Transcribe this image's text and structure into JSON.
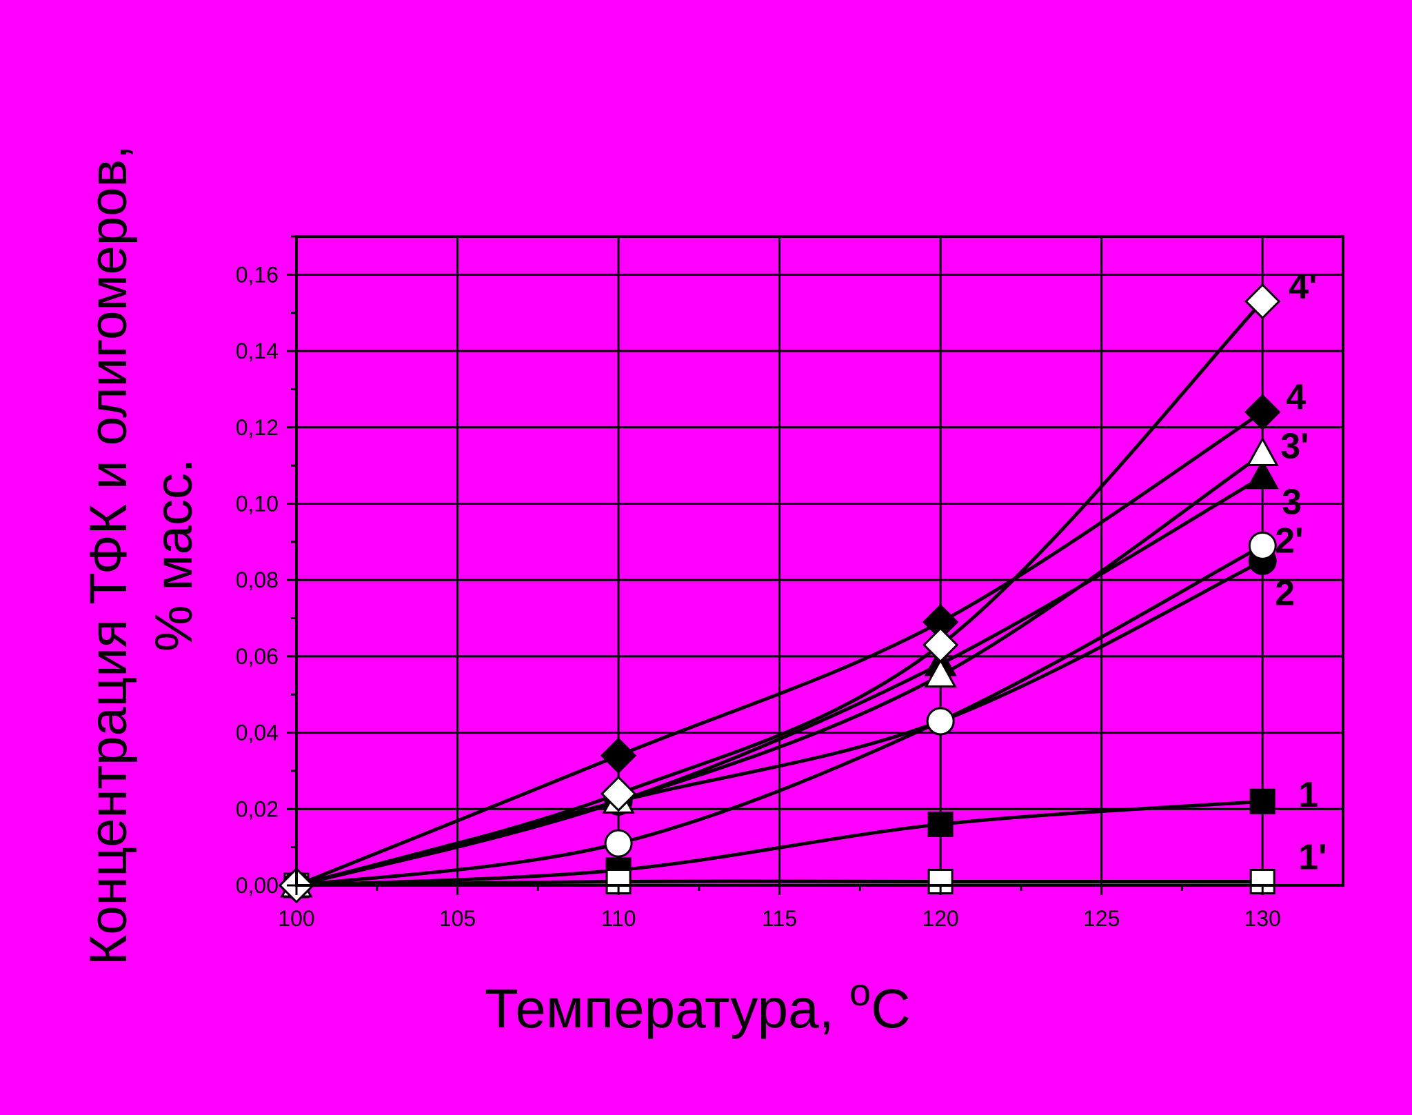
{
  "colors": {
    "background": "#ff00ff",
    "frame": "#000000",
    "ink": "#000000",
    "marker_open_fill": "#ffffff"
  },
  "chart_data": {
    "type": "line",
    "title": "",
    "xlabel": "Температура, ",
    "xlabel_superscript": "o",
    "xlabel_unit": "C",
    "ylabel_line1": "Концентрация ТФК и олигомеров,",
    "ylabel_line2": "% масс.",
    "xlim": [
      100,
      132.5
    ],
    "ylim": [
      0,
      0.17
    ],
    "grid": true,
    "legend": "none",
    "x_ticks": [
      {
        "value": 100,
        "label": "100"
      },
      {
        "value": 105,
        "label": "105"
      },
      {
        "value": 110,
        "label": "110"
      },
      {
        "value": 115,
        "label": "115"
      },
      {
        "value": 120,
        "label": "120"
      },
      {
        "value": 125,
        "label": "125"
      },
      {
        "value": 130,
        "label": "130"
      }
    ],
    "y_ticks": [
      {
        "value": 0,
        "label": "0,00"
      },
      {
        "value": 0.02,
        "label": "0,02"
      },
      {
        "value": 0.04,
        "label": "0,04"
      },
      {
        "value": 0.06,
        "label": "0,06"
      },
      {
        "value": 0.08,
        "label": "0,08"
      },
      {
        "value": 0.1,
        "label": "0,10"
      },
      {
        "value": 0.12,
        "label": "0,12"
      },
      {
        "value": 0.14,
        "label": "0,14"
      },
      {
        "value": 0.16,
        "label": "0,16"
      }
    ],
    "series": [
      {
        "name": "1",
        "marker": "square",
        "filled": true,
        "x": [
          100,
          110,
          120,
          130
        ],
        "y": [
          0.0,
          0.004,
          0.016,
          0.022
        ]
      },
      {
        "name": "1'",
        "marker": "square",
        "filled": false,
        "x": [
          100,
          110,
          120,
          130
        ],
        "y": [
          0.0,
          0.001,
          0.001,
          0.001
        ]
      },
      {
        "name": "2",
        "marker": "circle",
        "filled": true,
        "x": [
          100,
          110,
          120,
          130
        ],
        "y": [
          0.0,
          0.022,
          0.043,
          0.085
        ]
      },
      {
        "name": "2'",
        "marker": "circle",
        "filled": false,
        "x": [
          100,
          110,
          120,
          130
        ],
        "y": [
          0.0,
          0.011,
          0.043,
          0.089
        ]
      },
      {
        "name": "3",
        "marker": "triangle",
        "filled": true,
        "x": [
          100,
          110,
          120,
          130
        ],
        "y": [
          0.0,
          0.022,
          0.058,
          0.107
        ]
      },
      {
        "name": "3'",
        "marker": "triangle",
        "filled": false,
        "x": [
          100,
          110,
          120,
          130
        ],
        "y": [
          0.0,
          0.022,
          0.055,
          0.113
        ]
      },
      {
        "name": "4",
        "marker": "diamond",
        "filled": true,
        "x": [
          100,
          110,
          120,
          130
        ],
        "y": [
          0.0,
          0.034,
          0.069,
          0.124
        ]
      },
      {
        "name": "4'",
        "marker": "diamond",
        "filled": false,
        "x": [
          100,
          110,
          120,
          130
        ],
        "y": [
          0.0,
          0.024,
          0.063,
          0.153
        ]
      }
    ]
  }
}
